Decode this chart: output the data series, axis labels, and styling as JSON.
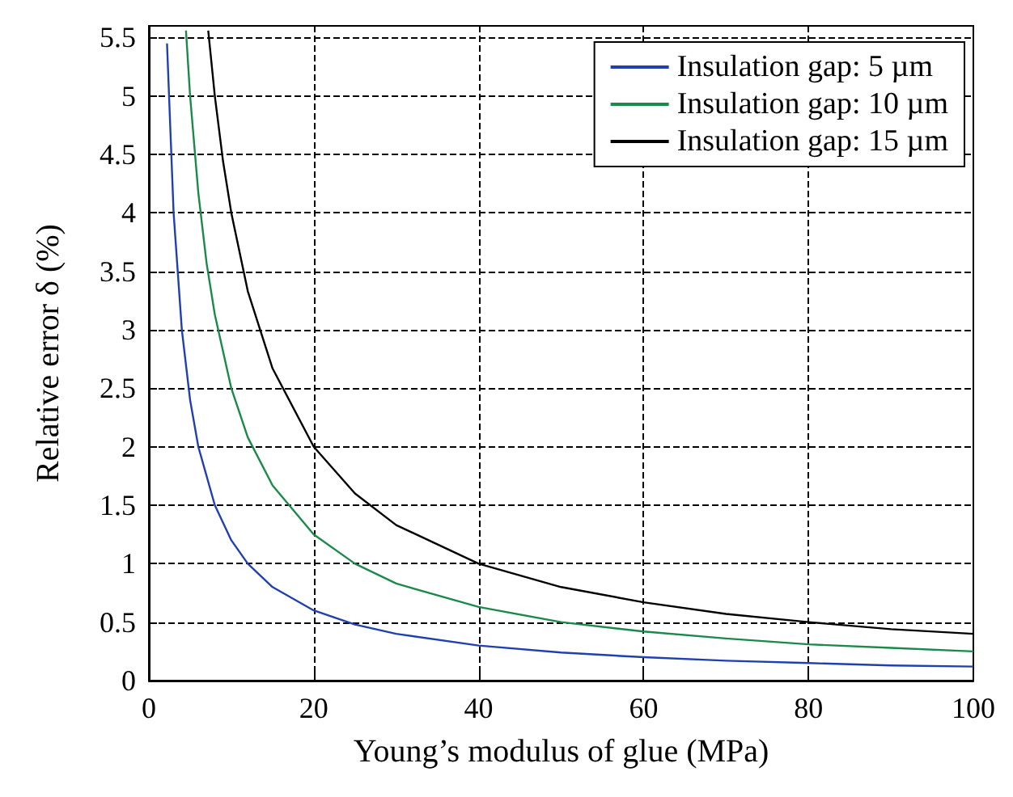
{
  "chart_data": {
    "type": "line",
    "xlabel": "Young’s modulus of glue (MPa)",
    "ylabel": "Relative error δ (%)",
    "xlim": [
      0,
      100
    ],
    "xticks": [
      0,
      20,
      40,
      60,
      80,
      100
    ],
    "ylim": [
      0,
      5.6
    ],
    "yticks": [
      0,
      0.5,
      1,
      1.5,
      2,
      2.5,
      3,
      3.5,
      4,
      4.5,
      5,
      5.5
    ],
    "grid": true,
    "legend": "top right",
    "marker": "none",
    "line_style": "solid",
    "series": [
      {
        "name": "Insulation gap: 5 µm",
        "color": "#2040b0",
        "x": [
          2.2,
          3,
          4,
          5,
          6,
          8,
          10,
          12,
          15,
          20,
          25,
          30,
          40,
          50,
          60,
          70,
          80,
          90,
          100
        ],
        "values": [
          5.45,
          4,
          3,
          2.4,
          2,
          1.5,
          1.2,
          1,
          0.8,
          0.6,
          0.48,
          0.4,
          0.3,
          0.24,
          0.2,
          0.17,
          0.15,
          0.13,
          0.12
        ]
      },
      {
        "name": "Insulation gap: 10 µm",
        "color": "#1a8a4a",
        "x": [
          4.5,
          5,
          6,
          7,
          8,
          10,
          12,
          15,
          20,
          25,
          30,
          40,
          50,
          60,
          70,
          80,
          90,
          100
        ],
        "values": [
          5.56,
          5,
          4.17,
          3.57,
          3.13,
          2.5,
          2.08,
          1.67,
          1.25,
          1,
          0.83,
          0.63,
          0.5,
          0.42,
          0.36,
          0.31,
          0.28,
          0.25
        ]
      },
      {
        "name": "Insulation gap: 15 µm",
        "color": "#000000",
        "x": [
          7.2,
          8,
          9,
          10,
          12,
          15,
          20,
          25,
          30,
          40,
          50,
          60,
          70,
          80,
          90,
          100
        ],
        "values": [
          5.56,
          5,
          4.44,
          4,
          3.33,
          2.67,
          2,
          1.6,
          1.33,
          1,
          0.8,
          0.67,
          0.57,
          0.5,
          0.44,
          0.4
        ]
      }
    ]
  }
}
